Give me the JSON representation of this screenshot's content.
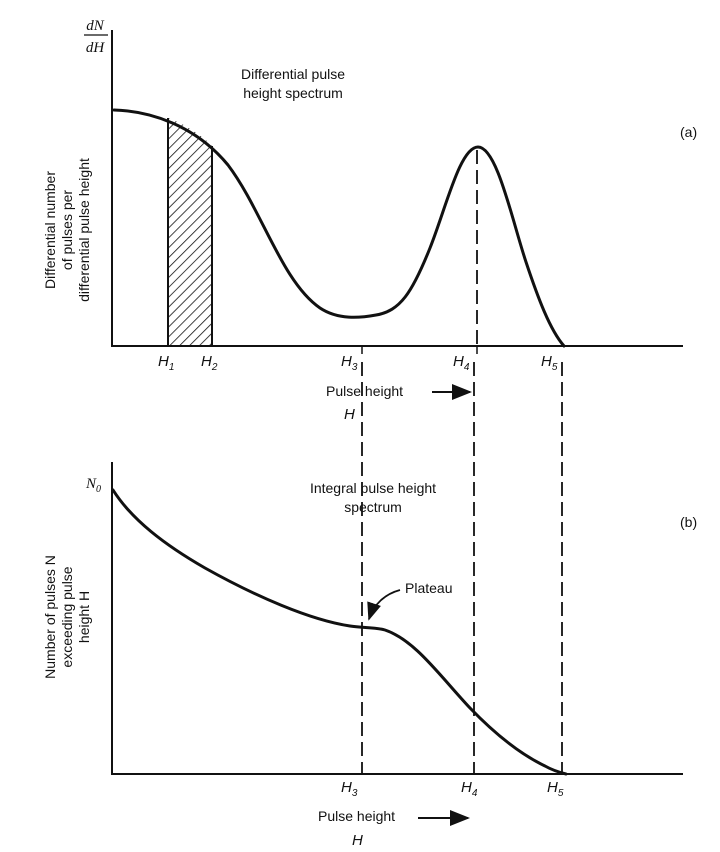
{
  "panel_a": {
    "y_label_fraction": {
      "numerator": "dN",
      "denominator": "dH"
    },
    "y_axis_title": [
      "Differential number",
      "of pulses per",
      "differential pulse height"
    ],
    "curve_label": [
      "Differential pulse",
      "height spectrum"
    ],
    "panel_tag": "(a)",
    "x_ticks": [
      {
        "letter": "H",
        "sub": "1"
      },
      {
        "letter": "H",
        "sub": "2"
      },
      {
        "letter": "H",
        "sub": "3"
      },
      {
        "letter": "H",
        "sub": "4"
      },
      {
        "letter": "H",
        "sub": "5"
      }
    ],
    "x_axis_title": "Pulse height",
    "x_axis_symbol": "H"
  },
  "panel_b": {
    "y_label_symbol": {
      "letter": "N",
      "sub": "0"
    },
    "y_axis_title": [
      "Number of pulses N",
      "exceeding pulse",
      "height H"
    ],
    "curve_label": [
      "Integral pulse height",
      "spectrum"
    ],
    "panel_tag": "(b)",
    "plateau_label": "Plateau",
    "x_ticks": [
      {
        "letter": "H",
        "sub": "3"
      },
      {
        "letter": "H",
        "sub": "4"
      },
      {
        "letter": "H",
        "sub": "5"
      }
    ],
    "x_axis_title": "Pulse height",
    "x_axis_symbol": "H"
  },
  "colors": {
    "ink": "#111111",
    "background": "#ffffff"
  }
}
